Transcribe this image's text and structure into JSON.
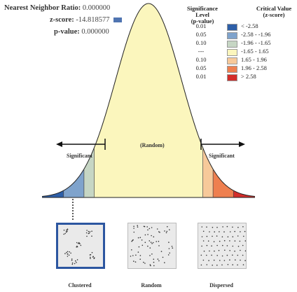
{
  "stats": {
    "ratio_label": "Nearest Neighbor Ratio:",
    "ratio_value": "0.000000",
    "z_label": "z-score:",
    "z_value": "-14.818577",
    "p_label": "p-value:",
    "p_value": "0.000000"
  },
  "legend": {
    "sig_header": "Significance Level",
    "sig_sub": "(p-value)",
    "crit_header": "Critical Value",
    "crit_sub": "(z-score)",
    "rows": [
      {
        "p": "0.01",
        "z": "< -2.58",
        "color": "#2e5fa8"
      },
      {
        "p": "0.05",
        "z": "-2.58 - -1.96",
        "color": "#7fa3cc"
      },
      {
        "p": "0.10",
        "z": "-1.96 - -1.65",
        "color": "#c6d6c4"
      },
      {
        "p": "---",
        "z": "-1.65 - 1.65",
        "color": "#fbf6bd"
      },
      {
        "p": "0.10",
        "z": "1.65 - 1.96",
        "color": "#f7c99a"
      },
      {
        "p": "0.05",
        "z": "1.96 - 2.58",
        "color": "#ee7f4f"
      },
      {
        "p": "0.01",
        "z": "> 2.58",
        "color": "#d32d2a"
      }
    ]
  },
  "curve": {
    "left_label": "Significant",
    "center_label": "(Random)",
    "right_label": "Significant"
  },
  "patterns": [
    {
      "name": "Clustered",
      "selected": true
    },
    {
      "name": "Random",
      "selected": false
    },
    {
      "name": "Dispersed",
      "selected": false
    }
  ]
}
